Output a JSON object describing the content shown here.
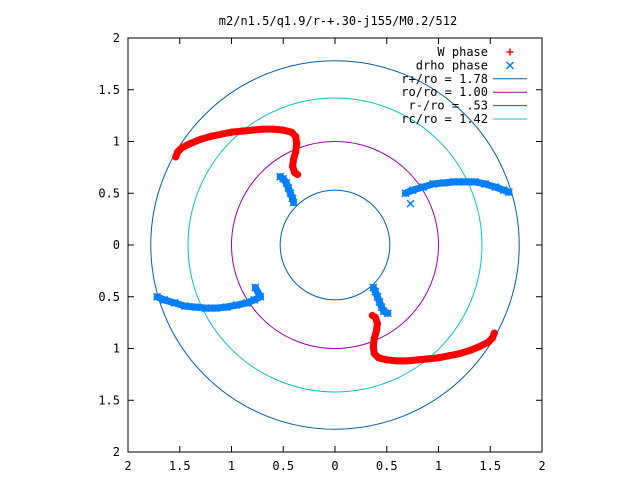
{
  "chart_data": {
    "type": "scatter",
    "title": "m2/n1.5/q1.9/r-+.30-j155/M0.2/512",
    "xlabel": "",
    "ylabel": "",
    "xlim": [
      -2,
      2
    ],
    "ylim": [
      -2,
      2
    ],
    "x_tick_values": [
      -2,
      -1.5,
      -1,
      -0.5,
      0,
      0.5,
      1,
      1.5,
      2
    ],
    "x_tick_labels": [
      "2",
      "1.5",
      "1",
      "0.5",
      "0",
      "0.5",
      "1",
      "1.5",
      "2"
    ],
    "y_tick_values": [
      2,
      1.5,
      1,
      0.5,
      0,
      -0.5,
      -1,
      -1.5,
      -2
    ],
    "y_tick_labels": [
      "2",
      "1.5",
      "1",
      "0.5",
      "0",
      "0.5",
      "1",
      "1.5",
      "2"
    ],
    "grid": false,
    "legend_position": "top-right",
    "series": [
      {
        "name": "W phase",
        "kind": "points",
        "marker": "+",
        "color": "#ff0000",
        "points": [
          [
            -1.54,
            0.85
          ],
          [
            -1.52,
            0.9
          ],
          [
            -1.48,
            0.94
          ],
          [
            -1.4,
            0.98
          ],
          [
            -1.3,
            1.02
          ],
          [
            -1.2,
            1.05
          ],
          [
            -1.1,
            1.07
          ],
          [
            -1.0,
            1.09
          ],
          [
            -0.9,
            1.1
          ],
          [
            -0.8,
            1.11
          ],
          [
            -0.7,
            1.12
          ],
          [
            -0.6,
            1.12
          ],
          [
            -0.5,
            1.11
          ],
          [
            -0.42,
            1.09
          ],
          [
            -0.38,
            1.05
          ],
          [
            -0.37,
            0.98
          ],
          [
            -0.38,
            0.9
          ],
          [
            -0.4,
            0.83
          ],
          [
            -0.41,
            0.76
          ],
          [
            -0.39,
            0.7
          ],
          [
            -0.36,
            0.68
          ],
          [
            1.54,
            -0.85
          ],
          [
            1.52,
            -0.9
          ],
          [
            1.48,
            -0.94
          ],
          [
            1.4,
            -0.98
          ],
          [
            1.3,
            -1.02
          ],
          [
            1.2,
            -1.05
          ],
          [
            1.1,
            -1.07
          ],
          [
            1.0,
            -1.09
          ],
          [
            0.9,
            -1.1
          ],
          [
            0.8,
            -1.11
          ],
          [
            0.7,
            -1.12
          ],
          [
            0.6,
            -1.12
          ],
          [
            0.5,
            -1.11
          ],
          [
            0.42,
            -1.09
          ],
          [
            0.38,
            -1.05
          ],
          [
            0.37,
            -0.98
          ],
          [
            0.38,
            -0.9
          ],
          [
            0.4,
            -0.83
          ],
          [
            0.41,
            -0.76
          ],
          [
            0.39,
            -0.7
          ],
          [
            0.36,
            -0.68
          ]
        ]
      },
      {
        "name": "drho phase",
        "kind": "points",
        "marker": "x",
        "color": "#0080ff",
        "points": [
          [
            -0.53,
            0.66
          ],
          [
            -0.5,
            0.64
          ],
          [
            -0.47,
            0.6
          ],
          [
            -0.45,
            0.55
          ],
          [
            -0.43,
            0.5
          ],
          [
            -0.41,
            0.45
          ],
          [
            -0.4,
            0.41
          ],
          [
            0.68,
            0.5
          ],
          [
            0.75,
            0.53
          ],
          [
            0.85,
            0.56
          ],
          [
            0.95,
            0.59
          ],
          [
            1.05,
            0.6
          ],
          [
            1.15,
            0.61
          ],
          [
            1.25,
            0.61
          ],
          [
            1.35,
            0.61
          ],
          [
            1.45,
            0.59
          ],
          [
            1.55,
            0.56
          ],
          [
            1.63,
            0.53
          ],
          [
            1.68,
            0.51
          ],
          [
            0.73,
            0.4
          ],
          [
            -1.72,
            -0.5
          ],
          [
            -1.65,
            -0.53
          ],
          [
            -1.55,
            -0.56
          ],
          [
            -1.45,
            -0.59
          ],
          [
            -1.35,
            -0.6
          ],
          [
            -1.25,
            -0.61
          ],
          [
            -1.15,
            -0.61
          ],
          [
            -1.05,
            -0.6
          ],
          [
            -0.95,
            -0.58
          ],
          [
            -0.85,
            -0.56
          ],
          [
            -0.78,
            -0.53
          ],
          [
            -0.72,
            -0.5
          ],
          [
            -0.77,
            -0.41
          ],
          [
            0.37,
            -0.41
          ],
          [
            0.39,
            -0.45
          ],
          [
            0.41,
            -0.5
          ],
          [
            0.43,
            -0.55
          ],
          [
            0.45,
            -0.6
          ],
          [
            0.47,
            -0.64
          ],
          [
            0.51,
            -0.66
          ]
        ]
      },
      {
        "name": "r+/ro = 1.78",
        "kind": "circle",
        "radius": 1.78,
        "color": "#0060ad"
      },
      {
        "name": "ro/ro = 1.00",
        "kind": "circle",
        "radius": 1.0,
        "color": "#a000b0"
      },
      {
        "name": "r-/ro = .53",
        "kind": "circle",
        "radius": 0.53,
        "color": "#0060ad"
      },
      {
        "name": "rc/ro = 1.42",
        "kind": "circle",
        "radius": 1.42,
        "color": "#00c8c8"
      }
    ]
  }
}
